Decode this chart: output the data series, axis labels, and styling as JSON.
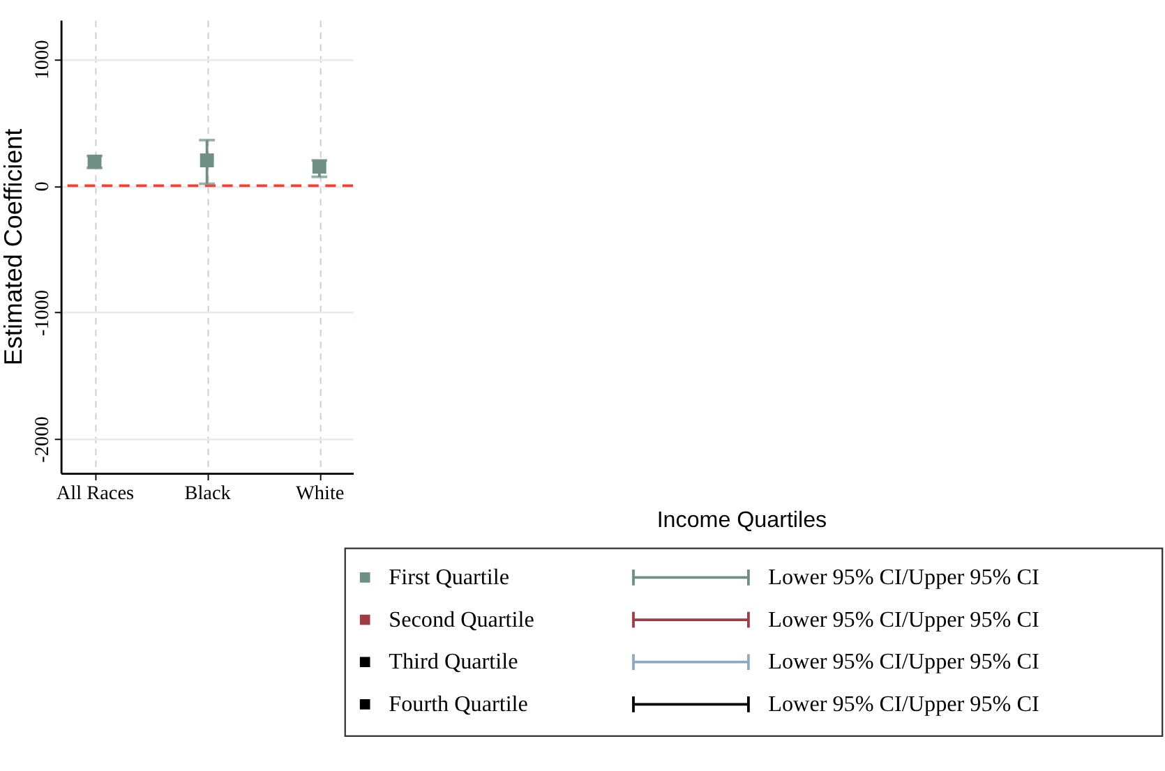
{
  "chart_data": {
    "type": "scatter",
    "ylabel": "Estimated Coefficient",
    "annotations": [
      "Income Quartiles"
    ],
    "categories": [
      "All Races",
      "Black",
      "White"
    ],
    "ylim": [
      -2270,
      1310
    ],
    "yticks": [
      {
        "value": -2000,
        "label": "-2000"
      },
      {
        "value": -1000,
        "label": "-1000"
      },
      0,
      {
        "value": 1000,
        "label": "1000"
      }
    ],
    "grid": true,
    "marker": "square",
    "legend": "bottom right",
    "ref_lines": [
      {
        "axis": "y",
        "value": 0,
        "color": "#ff3b30",
        "line_style": "dashed"
      }
    ],
    "series": [
      {
        "name": "First Quartile",
        "color": "#6f8f84",
        "values": [
          190,
          200,
          150
        ],
        "errors": [
          [
            140,
            235
          ],
          [
            15,
            360
          ],
          [
            70,
            200
          ]
        ]
      },
      {
        "name": "Second Quartile",
        "color": "#9e3b43",
        "values": [
          null,
          null,
          null
        ]
      },
      {
        "name": "Third Quartile",
        "color": "#000000",
        "values": [
          null,
          null,
          null
        ]
      },
      {
        "name": "Fourth Quartile",
        "color": "#000000",
        "values": [
          null,
          null,
          null
        ]
      },
      {
        "name": "Lower 95% CI/Upper 95% CI",
        "color": "#6f8f84",
        "line_style": "solid",
        "values": [
          null,
          null,
          null
        ]
      },
      {
        "name": "Lower 95% CI/Upper 95% CI",
        "color": "#9e3b43",
        "line_style": "solid",
        "values": [
          null,
          null,
          null
        ]
      },
      {
        "name": "Lower 95% CI/Upper 95% CI",
        "color": "#8fa9c4",
        "line_style": "solid",
        "values": [
          null,
          null,
          null
        ]
      },
      {
        "name": "Lower 95% CI/Upper 95% CI",
        "color": "#000000",
        "line_style": "solid",
        "values": [
          null,
          null,
          null
        ]
      }
    ]
  }
}
